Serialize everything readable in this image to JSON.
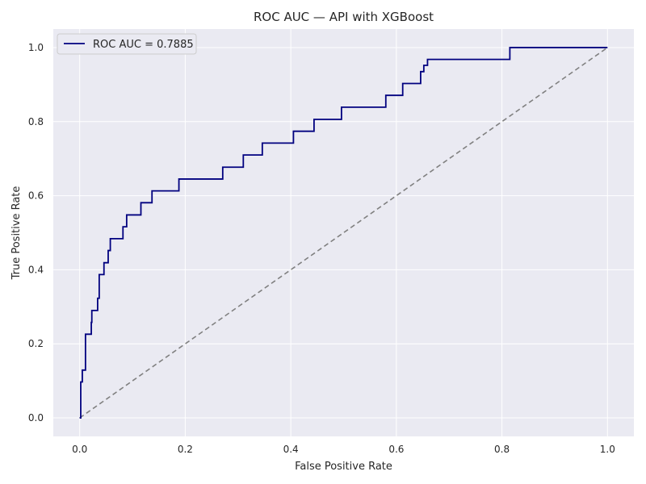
{
  "chart_data": {
    "type": "line",
    "title": "ROC AUC — API with XGBoost",
    "xlabel": "False Positive Rate",
    "ylabel": "True Positive Rate",
    "xlim": [
      -0.05,
      1.05
    ],
    "ylim": [
      -0.05,
      1.05
    ],
    "xticks": [
      0.0,
      0.2,
      0.4,
      0.6,
      0.8,
      1.0
    ],
    "xtick_labels": [
      "0.0",
      "0.2",
      "0.4",
      "0.6",
      "0.8",
      "1.0"
    ],
    "yticks": [
      0.0,
      0.2,
      0.4,
      0.6,
      0.8,
      1.0
    ],
    "ytick_labels": [
      "0.0",
      "0.2",
      "0.4",
      "0.6",
      "0.8",
      "1.0"
    ],
    "grid": true,
    "legend_position": "top-left",
    "background_color": "#eaeaf2",
    "grid_color": "#ffffff",
    "series": [
      {
        "name": "ROC AUC = 0.7885",
        "color": "#00007f",
        "style": "solid",
        "x": [
          0.0,
          0.002,
          0.002,
          0.005,
          0.005,
          0.011,
          0.011,
          0.022,
          0.022,
          0.023,
          0.023,
          0.034,
          0.034,
          0.037,
          0.037,
          0.046,
          0.046,
          0.054,
          0.054,
          0.058,
          0.058,
          0.06,
          0.06,
          0.082,
          0.082,
          0.089,
          0.089,
          0.116,
          0.116,
          0.137,
          0.137,
          0.188,
          0.188,
          0.271,
          0.271,
          0.31,
          0.31,
          0.346,
          0.346,
          0.405,
          0.405,
          0.444,
          0.444,
          0.496,
          0.496,
          0.58,
          0.58,
          0.612,
          0.612,
          0.646,
          0.646,
          0.652,
          0.652,
          0.659,
          0.659,
          0.815,
          0.815,
          1.0
        ],
        "y": [
          0.0,
          0.0,
          0.097,
          0.097,
          0.129,
          0.129,
          0.226,
          0.226,
          0.258,
          0.258,
          0.29,
          0.29,
          0.323,
          0.323,
          0.387,
          0.387,
          0.419,
          0.419,
          0.452,
          0.452,
          0.484,
          0.484,
          0.484,
          0.484,
          0.516,
          0.516,
          0.548,
          0.548,
          0.581,
          0.581,
          0.613,
          0.613,
          0.645,
          0.645,
          0.677,
          0.677,
          0.71,
          0.71,
          0.742,
          0.742,
          0.774,
          0.774,
          0.806,
          0.806,
          0.839,
          0.839,
          0.871,
          0.871,
          0.903,
          0.903,
          0.935,
          0.935,
          0.952,
          0.952,
          0.968,
          0.968,
          1.0,
          1.0
        ]
      },
      {
        "name": "",
        "color": "#808080",
        "style": "dashed",
        "x": [
          0.0,
          1.0
        ],
        "y": [
          0.0,
          1.0
        ]
      }
    ]
  }
}
